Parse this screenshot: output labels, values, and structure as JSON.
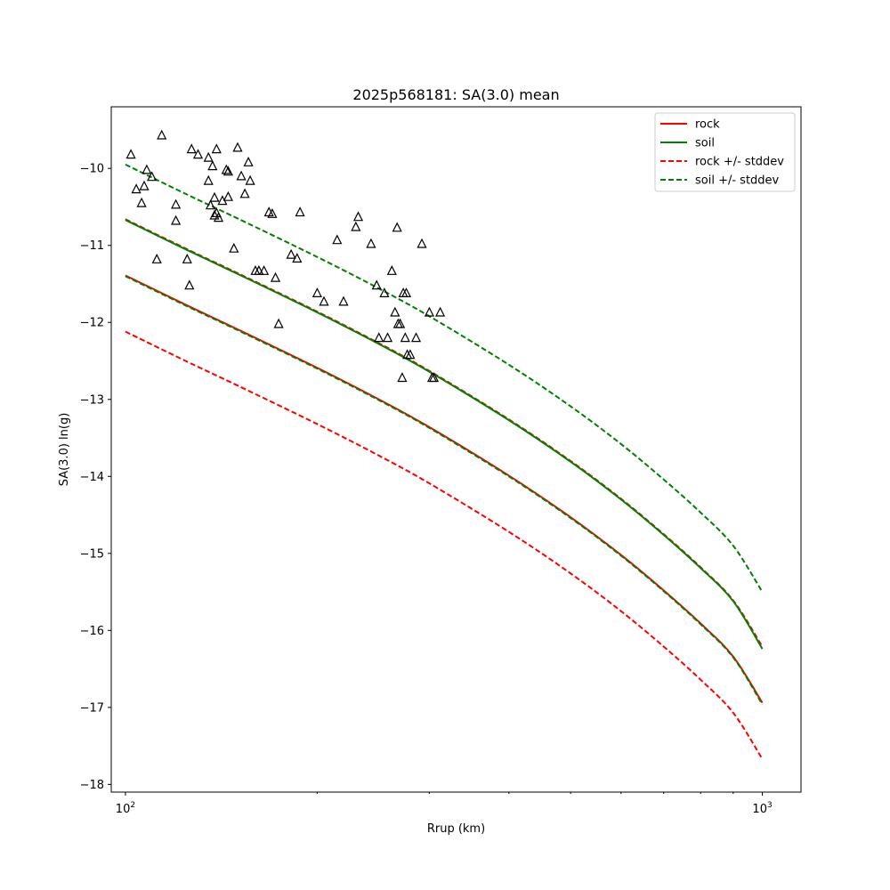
{
  "chart_data": {
    "type": "line",
    "title": "2025p568181: SA(3.0) mean",
    "xlabel": "Rrup (km)",
    "ylabel": "SA(3.0) ln(g)",
    "xscale": "log",
    "xlim": [
      95,
      1150
    ],
    "ylim": [
      -18.1,
      -9.2
    ],
    "x_ticks": [
      {
        "value": 100,
        "base": "10",
        "exp": "2"
      },
      {
        "value": 1000,
        "base": "10",
        "exp": "3"
      }
    ],
    "y_ticks": [
      {
        "value": -10,
        "label": "−10"
      },
      {
        "value": -11,
        "label": "−11"
      },
      {
        "value": -12,
        "label": "−12"
      },
      {
        "value": -13,
        "label": "−13"
      },
      {
        "value": -14,
        "label": "−14"
      },
      {
        "value": -15,
        "label": "−15"
      },
      {
        "value": -16,
        "label": "−16"
      },
      {
        "value": -17,
        "label": "−17"
      },
      {
        "value": -18,
        "label": "−18"
      }
    ],
    "grid": false,
    "legend_position": "top-right",
    "legend": [
      {
        "label": "rock",
        "color": "#ff0000",
        "style": "solid"
      },
      {
        "label": "soil",
        "color": "#008000",
        "style": "solid"
      },
      {
        "label": "rock +/- stddev",
        "color": "#ff0000",
        "style": "dashed"
      },
      {
        "label": "soil +/- stddev",
        "color": "#008000",
        "style": "dashed"
      }
    ],
    "series": [
      {
        "role": "rock-mean",
        "color": "#ff0000",
        "style": "solid",
        "x": [
          100,
          125,
          150,
          200,
          250,
          300,
          400,
          500,
          600,
          700,
          800,
          900,
          1000
        ],
        "y": [
          -11.39,
          -11.78,
          -12.09,
          -12.59,
          -13.0,
          -13.36,
          -13.99,
          -14.53,
          -15.02,
          -15.48,
          -15.91,
          -16.34,
          -16.94
        ]
      },
      {
        "role": "rock-plus-stddev",
        "color": "#ff0000",
        "style": "dashed",
        "x": [
          100,
          125,
          150,
          200,
          250,
          300,
          400,
          500,
          600,
          700,
          800,
          900,
          1000
        ],
        "y": [
          -10.66,
          -11.05,
          -11.36,
          -11.86,
          -12.27,
          -12.63,
          -13.26,
          -13.8,
          -14.29,
          -14.75,
          -15.18,
          -15.61,
          -16.21
        ]
      },
      {
        "role": "rock-minus-stddev",
        "color": "#ff0000",
        "style": "dashed",
        "x": [
          100,
          125,
          150,
          200,
          250,
          300,
          400,
          500,
          600,
          700,
          800,
          900,
          1000
        ],
        "y": [
          -12.12,
          -12.51,
          -12.82,
          -13.32,
          -13.73,
          -14.09,
          -14.72,
          -15.26,
          -15.75,
          -16.21,
          -16.64,
          -17.07,
          -17.67
        ]
      },
      {
        "role": "soil-mean",
        "color": "#008000",
        "style": "solid",
        "x": [
          100,
          125,
          150,
          200,
          250,
          300,
          400,
          500,
          600,
          700,
          800,
          900,
          1000
        ],
        "y": [
          -10.67,
          -11.06,
          -11.37,
          -11.87,
          -12.28,
          -12.64,
          -13.27,
          -13.81,
          -14.3,
          -14.76,
          -15.19,
          -15.62,
          -16.24
        ]
      },
      {
        "role": "soil-plus-stddev",
        "color": "#008000",
        "style": "dashed",
        "x": [
          100,
          125,
          150,
          200,
          250,
          300,
          400,
          500,
          600,
          700,
          800,
          900,
          1000
        ],
        "y": [
          -9.95,
          -10.34,
          -10.65,
          -11.15,
          -11.56,
          -11.92,
          -12.55,
          -13.09,
          -13.58,
          -14.04,
          -14.47,
          -14.9,
          -15.5
        ]
      },
      {
        "role": "soil-minus-stddev",
        "color": "#008000",
        "style": "dashed",
        "x": [
          100,
          125,
          150,
          200,
          250,
          300,
          400,
          500,
          600,
          700,
          800,
          900,
          1000
        ],
        "y": [
          -11.4,
          -11.79,
          -12.1,
          -12.6,
          -13.01,
          -13.37,
          -14.0,
          -14.54,
          -15.03,
          -15.49,
          -15.92,
          -16.35,
          -16.96
        ]
      }
    ],
    "observations": {
      "marker": "open-triangle",
      "color": "#000000",
      "x": [
        102,
        104,
        106,
        107,
        108,
        110,
        112,
        114,
        120,
        120,
        125,
        126,
        127,
        130,
        135,
        135,
        136,
        137,
        138,
        138,
        139,
        139,
        140,
        142,
        144,
        145,
        145,
        148,
        150,
        152,
        154,
        156,
        157,
        160,
        162,
        165,
        168,
        170,
        172,
        174,
        182,
        186,
        188,
        200,
        205,
        215,
        220,
        230,
        232,
        243,
        248,
        250,
        255,
        258,
        262,
        265,
        267,
        268,
        270,
        272,
        273,
        275,
        276,
        277,
        280,
        286,
        292,
        300,
        303,
        305,
        312
      ],
      "y": [
        -9.82,
        -10.27,
        -10.45,
        -10.23,
        -10.02,
        -10.11,
        -11.18,
        -9.57,
        -10.47,
        -10.68,
        -11.18,
        -11.52,
        -9.75,
        -9.82,
        -9.86,
        -10.16,
        -10.48,
        -9.97,
        -10.38,
        -10.61,
        -9.75,
        -10.58,
        -10.64,
        -10.42,
        -10.02,
        -10.04,
        -10.37,
        -11.04,
        -9.73,
        -10.1,
        -10.33,
        -9.92,
        -10.16,
        -11.33,
        -11.33,
        -11.33,
        -10.57,
        -10.59,
        -11.42,
        -12.02,
        -11.12,
        -11.17,
        -10.57,
        -11.62,
        -11.73,
        -10.93,
        -11.73,
        -10.76,
        -10.63,
        -10.98,
        -11.52,
        -12.2,
        -11.62,
        -12.2,
        -11.33,
        -11.87,
        -10.77,
        -12.02,
        -12.02,
        -12.72,
        -11.62,
        -12.2,
        -11.62,
        -12.42,
        -12.42,
        -12.2,
        -10.98,
        -11.87,
        -12.72,
        -12.72,
        -11.87
      ]
    }
  }
}
